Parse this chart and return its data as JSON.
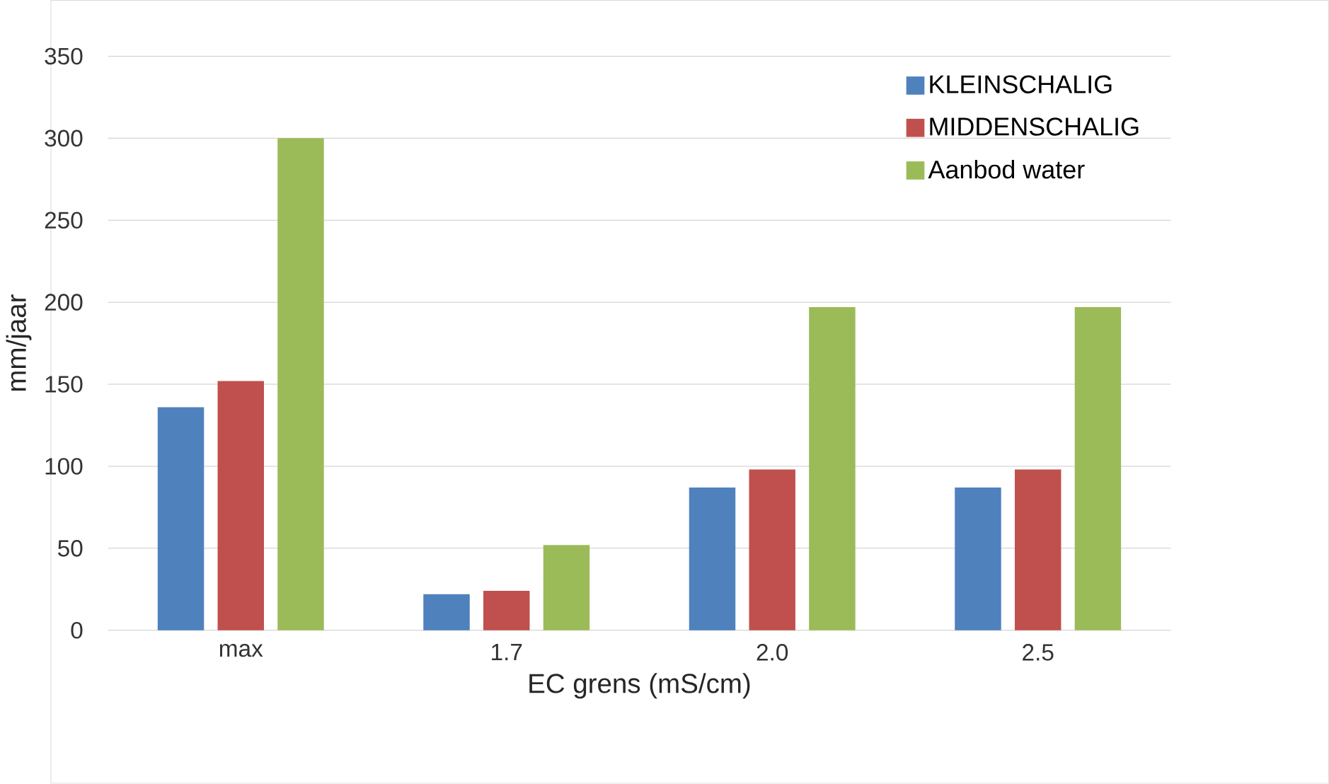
{
  "chart_data": {
    "type": "bar",
    "xlabel": "EC grens (mS/cm)",
    "ylabel": "mm/jaar",
    "categories": [
      "max",
      "1.7",
      "2.0",
      "2.5"
    ],
    "series": [
      {
        "name": "KLEINSCHALIG",
        "color": "#4f81bd",
        "values": [
          136,
          22,
          87,
          87
        ]
      },
      {
        "name": "MIDDENSCHALIG",
        "color": "#c0504d",
        "values": [
          152,
          24,
          98,
          98
        ]
      },
      {
        "name": "Aanbod water",
        "color": "#9bbb59",
        "values": [
          300,
          52,
          197,
          197
        ]
      }
    ],
    "ylim": [
      0,
      350
    ],
    "yticks": [
      0,
      50,
      100,
      150,
      200,
      250,
      300,
      350
    ],
    "grid": "y",
    "legend": "top right"
  }
}
